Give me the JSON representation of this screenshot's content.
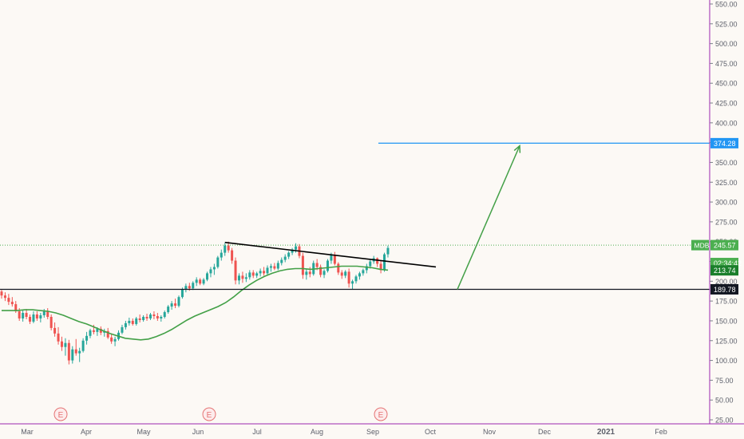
{
  "chart_data": {
    "type": "candlestick",
    "symbol": "MDB",
    "y_axis": {
      "min": 25,
      "max": 550,
      "ticks": [
        "550.00",
        "525.00",
        "500.00",
        "475.00",
        "450.00",
        "425.00",
        "400.00",
        "375.00",
        "350.00",
        "325.00",
        "300.00",
        "275.00",
        "250.00",
        "225.00",
        "200.00",
        "175.00",
        "150.00",
        "125.00",
        "100.00",
        "75.00",
        "50.00",
        "25.00"
      ]
    },
    "x_axis": {
      "labels": [
        "Mar",
        "Apr",
        "May",
        "Jun",
        "Jul",
        "Aug",
        "Sep",
        "Oct",
        "Nov",
        "Dec",
        "2021",
        "Feb"
      ],
      "bold": [
        "2021"
      ]
    },
    "ohlc": [
      [
        187,
        189,
        178,
        182
      ],
      [
        182,
        186,
        175,
        179
      ],
      [
        179,
        184,
        170,
        174
      ],
      [
        174,
        180,
        168,
        171
      ],
      [
        171,
        175,
        160,
        162
      ],
      [
        162,
        166,
        150,
        153
      ],
      [
        153,
        163,
        149,
        160
      ],
      [
        160,
        165,
        152,
        155
      ],
      [
        155,
        158,
        146,
        149
      ],
      [
        149,
        162,
        147,
        158
      ],
      [
        158,
        162,
        150,
        153
      ],
      [
        153,
        160,
        148,
        157
      ],
      [
        157,
        165,
        154,
        162
      ],
      [
        162,
        166,
        152,
        155
      ],
      [
        155,
        158,
        138,
        141
      ],
      [
        141,
        148,
        130,
        134
      ],
      [
        134,
        142,
        120,
        124
      ],
      [
        124,
        130,
        112,
        117
      ],
      [
        117,
        128,
        106,
        122
      ],
      [
        122,
        126,
        95,
        100
      ],
      [
        100,
        118,
        96,
        114
      ],
      [
        114,
        127,
        106,
        109
      ],
      [
        109,
        116,
        98,
        112
      ],
      [
        112,
        128,
        110,
        125
      ],
      [
        125,
        136,
        120,
        131
      ],
      [
        131,
        140,
        128,
        138
      ],
      [
        138,
        145,
        133,
        136
      ],
      [
        136,
        142,
        131,
        140
      ],
      [
        140,
        143,
        132,
        135
      ],
      [
        135,
        140,
        130,
        137
      ],
      [
        137,
        141,
        127,
        129
      ],
      [
        129,
        133,
        121,
        124
      ],
      [
        124,
        130,
        118,
        127
      ],
      [
        127,
        138,
        125,
        135
      ],
      [
        135,
        145,
        133,
        142
      ],
      [
        142,
        150,
        139,
        147
      ],
      [
        147,
        154,
        144,
        150
      ],
      [
        150,
        153,
        144,
        146
      ],
      [
        146,
        155,
        144,
        153
      ],
      [
        153,
        158,
        148,
        151
      ],
      [
        151,
        157,
        149,
        155
      ],
      [
        155,
        159,
        150,
        153
      ],
      [
        153,
        160,
        151,
        158
      ],
      [
        158,
        162,
        152,
        156
      ],
      [
        156,
        160,
        150,
        153
      ],
      [
        153,
        157,
        149,
        155
      ],
      [
        155,
        163,
        153,
        161
      ],
      [
        161,
        170,
        159,
        168
      ],
      [
        168,
        175,
        164,
        172
      ],
      [
        172,
        178,
        166,
        169
      ],
      [
        169,
        182,
        167,
        180
      ],
      [
        180,
        192,
        178,
        190
      ],
      [
        190,
        197,
        186,
        194
      ],
      [
        194,
        198,
        188,
        191
      ],
      [
        191,
        200,
        189,
        198
      ],
      [
        198,
        205,
        194,
        202
      ],
      [
        202,
        204,
        195,
        197
      ],
      [
        197,
        204,
        195,
        202
      ],
      [
        202,
        212,
        200,
        210
      ],
      [
        210,
        218,
        205,
        215
      ],
      [
        215,
        222,
        208,
        218
      ],
      [
        218,
        232,
        216,
        230
      ],
      [
        230,
        240,
        226,
        236
      ],
      [
        236,
        248,
        232,
        245
      ],
      [
        245,
        250,
        236,
        239
      ],
      [
        239,
        242,
        222,
        226
      ],
      [
        226,
        230,
        196,
        201
      ],
      [
        201,
        210,
        196,
        207
      ],
      [
        207,
        212,
        198,
        203
      ],
      [
        203,
        210,
        199,
        205
      ],
      [
        205,
        214,
        202,
        211
      ],
      [
        211,
        214,
        204,
        207
      ],
      [
        207,
        212,
        204,
        210
      ],
      [
        210,
        216,
        206,
        213
      ],
      [
        213,
        218,
        207,
        210
      ],
      [
        210,
        220,
        208,
        217
      ],
      [
        217,
        222,
        212,
        219
      ],
      [
        219,
        223,
        214,
        216
      ],
      [
        216,
        226,
        214,
        223
      ],
      [
        223,
        230,
        220,
        227
      ],
      [
        227,
        234,
        224,
        231
      ],
      [
        231,
        238,
        228,
        236
      ],
      [
        236,
        242,
        233,
        240
      ],
      [
        240,
        248,
        236,
        244
      ],
      [
        244,
        247,
        229,
        232
      ],
      [
        232,
        236,
        203,
        208
      ],
      [
        208,
        215,
        202,
        212
      ],
      [
        212,
        218,
        205,
        209
      ],
      [
        209,
        226,
        207,
        223
      ],
      [
        223,
        228,
        214,
        218
      ],
      [
        218,
        221,
        205,
        208
      ],
      [
        208,
        215,
        204,
        213
      ],
      [
        213,
        228,
        211,
        226
      ],
      [
        226,
        236,
        222,
        233
      ],
      [
        233,
        237,
        220,
        222
      ],
      [
        222,
        224,
        208,
        211
      ],
      [
        211,
        214,
        203,
        207
      ],
      [
        207,
        214,
        204,
        212
      ],
      [
        212,
        216,
        192,
        197
      ],
      [
        197,
        202,
        190,
        200
      ],
      [
        200,
        208,
        197,
        206
      ],
      [
        206,
        212,
        202,
        210
      ],
      [
        210,
        216,
        207,
        214
      ],
      [
        214,
        222,
        210,
        219
      ],
      [
        219,
        228,
        216,
        225
      ],
      [
        225,
        232,
        222,
        229
      ],
      [
        229,
        230,
        218,
        222
      ],
      [
        222,
        226,
        210,
        214
      ],
      [
        214,
        236,
        212,
        234
      ],
      [
        234,
        245,
        230,
        242
      ]
    ],
    "sma": [
      163,
      163,
      163,
      164,
      164,
      163,
      162,
      160,
      157,
      153,
      149,
      146,
      142,
      138,
      134,
      131,
      128,
      127,
      126,
      127,
      130,
      134,
      139,
      145,
      151,
      156,
      160,
      164,
      168,
      173,
      180,
      188,
      195,
      201,
      206,
      210,
      213,
      215,
      216,
      216,
      215,
      216,
      217,
      218,
      219,
      219,
      219,
      218,
      217,
      215,
      214
    ],
    "price_levels": [
      {
        "name": "MDB",
        "value": 245.57,
        "label": "245.57",
        "color": "#4caf50"
      },
      {
        "name": "countdown",
        "value": 226,
        "label": "02:34:42",
        "color": "#4caf50"
      },
      {
        "name": "ma",
        "value": 213.74,
        "label": "213.74",
        "color": "#1b7f2b"
      },
      {
        "name": "support",
        "value": 189.78,
        "label": "189.78",
        "color": "#131722"
      },
      {
        "name": "target",
        "value": 374.28,
        "label": "374.28",
        "color": "#2196f3"
      }
    ],
    "partial_tick": "225.00",
    "earnings_marker": "E",
    "colors": {
      "up": "#26a69a",
      "down": "#ef5350",
      "sma": "#43a047",
      "trendline": "#000000",
      "support": "#131722",
      "target": "#2196f3",
      "arrow": "#43a047",
      "earnings": "#e57373",
      "axis_border": "#9c27b0"
    }
  }
}
